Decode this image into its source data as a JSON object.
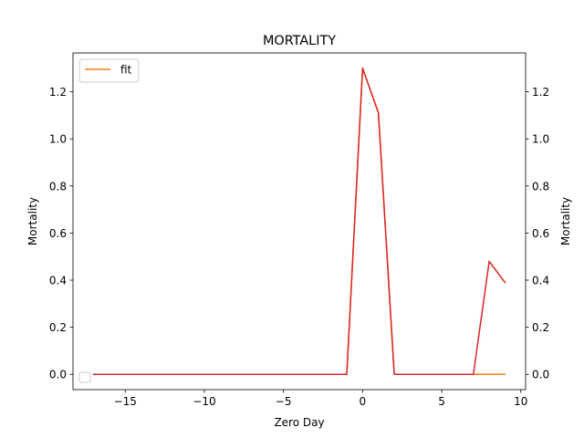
{
  "chart_data": {
    "type": "line",
    "title": "MORTALITY",
    "xlabel": "Zero Day",
    "ylabel": "Mortality",
    "ylabel_right": "Mortality",
    "xlim": [
      -18.3,
      10.3
    ],
    "ylim": [
      -0.065,
      1.365
    ],
    "x_ticks": [
      -15,
      -10,
      -5,
      0,
      5,
      10
    ],
    "x_tick_labels": [
      "−15",
      "−10",
      "−5",
      "0",
      "5",
      "10"
    ],
    "y_ticks": [
      0.0,
      0.2,
      0.4,
      0.6,
      0.8,
      1.0,
      1.2
    ],
    "y_tick_labels": [
      "0.0",
      "0.2",
      "0.4",
      "0.6",
      "0.8",
      "1.0",
      "1.2"
    ],
    "grid": false,
    "legend_placement": "top-left",
    "x": [
      -17,
      -16,
      -15,
      -14,
      -13,
      -12,
      -11,
      -10,
      -9,
      -8,
      -7,
      -6,
      -5,
      -4,
      -3,
      -2,
      -1,
      0,
      1,
      2,
      3,
      4,
      5,
      6,
      7,
      8,
      9
    ],
    "series": [
      {
        "name": "fit",
        "color": "#ff7f0e",
        "values": [
          0,
          0,
          0,
          0,
          0,
          0,
          0,
          0,
          0,
          0,
          0,
          0,
          0,
          0,
          0,
          0,
          0,
          1.3,
          1.11,
          0,
          0,
          0,
          0,
          0,
          0,
          0,
          0
        ]
      },
      {
        "name": "",
        "color": "#d62728",
        "values": [
          0,
          0,
          0,
          0,
          0,
          0,
          0,
          0,
          0,
          0,
          0,
          0,
          0,
          0,
          0,
          0,
          0,
          1.3,
          1.11,
          0,
          0,
          0,
          0,
          0,
          0,
          0.48,
          0.39
        ]
      }
    ],
    "legend": {
      "entries": [
        {
          "label": "fit",
          "color": "#ff7f0e"
        }
      ]
    }
  }
}
